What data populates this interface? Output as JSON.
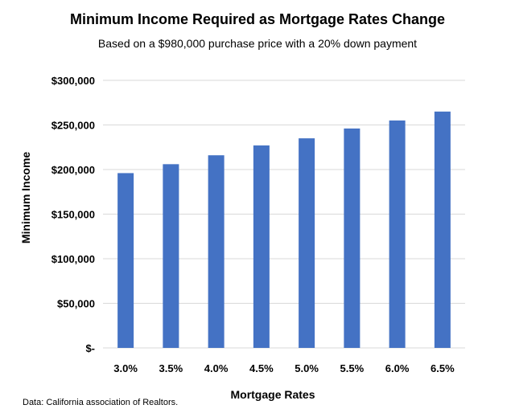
{
  "chart_data": {
    "type": "bar",
    "title": "Minimum Income Required as Mortgage Rates Change",
    "subtitle": "Based on a $980,000 purchase price with a 20% down payment",
    "xlabel": "Mortgage Rates",
    "ylabel": "Minimum Income",
    "categories": [
      "3.0%",
      "3.5%",
      "4.0%",
      "4.5%",
      "5.0%",
      "5.5%",
      "6.0%",
      "6.5%"
    ],
    "values": [
      196000,
      206000,
      216000,
      227000,
      235000,
      246000,
      255000,
      265000
    ],
    "ylim": [
      0,
      300000
    ],
    "yticks": [
      0,
      50000,
      100000,
      150000,
      200000,
      250000,
      300000
    ],
    "ytick_labels": [
      "$-",
      "$50,000",
      "$100,000",
      "$150,000",
      "$200,000",
      "$250,000",
      "$300,000"
    ],
    "grid": true,
    "bar_color": "#4472C4",
    "grid_color": "#d9d9d9",
    "source": "Data: California association of Realtors."
  }
}
